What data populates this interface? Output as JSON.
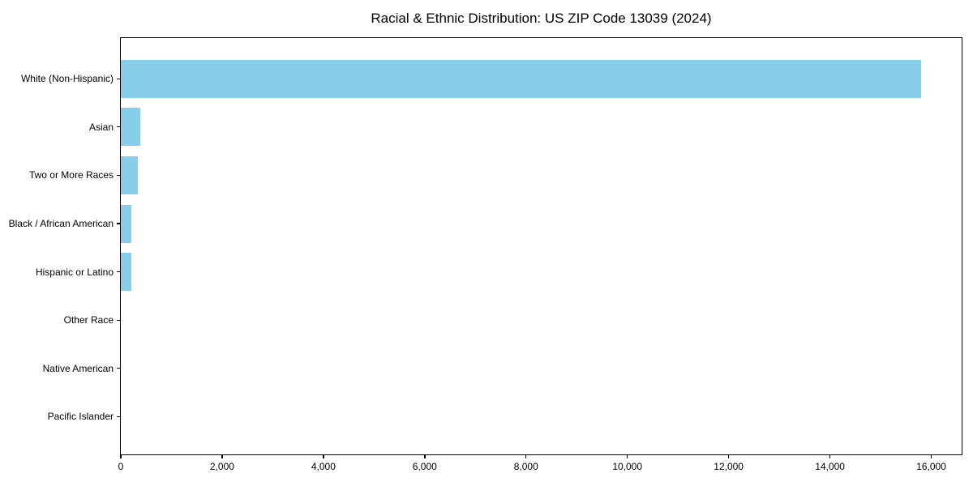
{
  "chart_data": {
    "type": "bar",
    "orientation": "horizontal",
    "title": "Racial & Ethnic Distribution: US ZIP Code 13039 (2024)",
    "categories": [
      "White (Non-Hispanic)",
      "Asian",
      "Two or More Races",
      "Black / African American",
      "Hispanic or Latino",
      "Other Race",
      "Native American",
      "Pacific Islander"
    ],
    "values": [
      15800,
      390,
      330,
      215,
      210,
      0,
      0,
      0
    ],
    "xlabel": "",
    "ylabel": "",
    "xlim": [
      0,
      16600
    ],
    "xticks": {
      "values": [
        0,
        2000,
        4000,
        6000,
        8000,
        10000,
        12000,
        14000,
        16000
      ],
      "labels": [
        "0",
        "2,000",
        "4,000",
        "6,000",
        "8,000",
        "10,000",
        "12,000",
        "14,000",
        "16,000"
      ]
    },
    "grid": false,
    "legend": null,
    "colors": {
      "bar": "#87CEEB",
      "axis": "#000000",
      "text": "#000000",
      "background": "#FFFFFF"
    }
  }
}
